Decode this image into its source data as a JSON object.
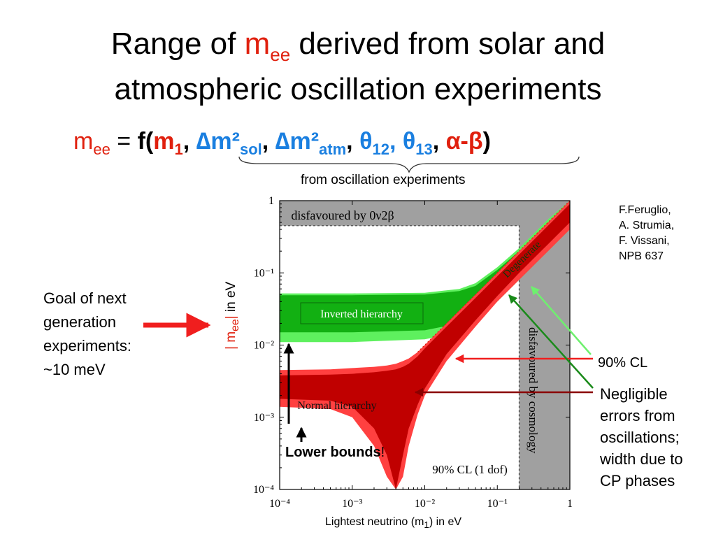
{
  "slide": {
    "title_pre": "Range of ",
    "title_m": "m",
    "title_sub": "ee",
    "title_post": "  derived from solar and",
    "title_line2": "atmospheric oscillation experiments",
    "formula": {
      "lhs_m": "m",
      "lhs_sub": "ee",
      "eq": " = ",
      "f_open": "f(",
      "m1": "m",
      "m1_sub": "1",
      "comma": ", ",
      "dm_sol": "∆m²",
      "dm_sol_sub": "sol",
      "dm_atm": "∆m²",
      "dm_atm_sub": "atm",
      "theta12": "θ",
      "theta12_sub": "12",
      "theta13": "θ",
      "theta13_sub": "13",
      "alpha_beta": "α-β",
      "close": ")"
    },
    "osc_label": "from oscillation experiments",
    "goal_lines": [
      "Goal of next",
      "generation",
      "experiments:",
      "~10 meV"
    ],
    "reference_lines": [
      "F.Feruglio,",
      "A. Strumia,",
      "F. Vissani,",
      "NPB 637"
    ],
    "cl_label": "90% CL",
    "negligible_lines": [
      "Negligible",
      "errors from",
      "oscillations;",
      "width due to",
      "CP phases"
    ],
    "lower_bounds": "Lower bounds",
    "lower_bounds_excl": "!",
    "xlabel_pre": "Lightest neutrino (m",
    "xlabel_sub": "1",
    "xlabel_post": ") in eV",
    "ylabel_bar1": "| m",
    "ylabel_sub": "ee",
    "ylabel_bar2": "|",
    "ylabel_post": " in eV"
  },
  "chart_data": {
    "type": "area",
    "xscale": "log",
    "yscale": "log",
    "xlim": [
      0.0001,
      1
    ],
    "ylim": [
      0.0001,
      1
    ],
    "x_ticks": [
      "10⁻⁴",
      "10⁻³",
      "10⁻²",
      "10⁻¹",
      "1"
    ],
    "y_ticks": [
      "10⁻⁴",
      "10⁻³",
      "10⁻²",
      "10⁻¹",
      "1"
    ],
    "tick_values": [
      0.0001,
      0.001,
      0.01,
      0.1,
      1
    ],
    "annotations": {
      "disfavoured_0v2b": "disfavoured by 0ν2β",
      "disfavoured_cosmology": "disfavoured by cosmology",
      "degenerate": "Degenerate",
      "inverted": "Inverted hierarchy",
      "normal": "Normal hierarchy",
      "cl_dof": "90% CL (1 dof)"
    },
    "excluded_regions": [
      {
        "name": "disfavoured by 0ν2β",
        "y_min": 0.45
      },
      {
        "name": "disfavoured by cosmology",
        "x_min": 0.2
      }
    ],
    "series": [
      {
        "name": "Inverted hierarchy",
        "color_outer": "#5ef05e",
        "color_inner": "#12b012",
        "x": [
          0.0001,
          0.001,
          0.01,
          0.03,
          0.05,
          0.1,
          0.2,
          0.5,
          1
        ],
        "outer_low": [
          0.011,
          0.011,
          0.012,
          0.015,
          0.02,
          0.04,
          0.08,
          0.2,
          0.4
        ],
        "outer_high": [
          0.052,
          0.052,
          0.053,
          0.06,
          0.072,
          0.12,
          0.22,
          0.55,
          1.0
        ],
        "inner_low": [
          0.015,
          0.015,
          0.016,
          0.02,
          0.027,
          0.052,
          0.1,
          0.25,
          0.5
        ],
        "inner_high": [
          0.049,
          0.049,
          0.05,
          0.056,
          0.066,
          0.11,
          0.2,
          0.5,
          1.0
        ]
      },
      {
        "name": "Normal hierarchy",
        "color_outer": "#ff4040",
        "color_inner": "#c00000",
        "x": [
          0.0001,
          0.0005,
          0.001,
          0.002,
          0.003,
          0.004,
          0.005,
          0.006,
          0.008,
          0.01,
          0.02,
          0.05,
          0.1,
          0.2,
          0.5,
          1
        ],
        "outer_low": [
          0.0014,
          0.0013,
          0.001,
          0.0004,
          0.00015,
          0.0001,
          0.00015,
          0.0004,
          0.0011,
          0.002,
          0.006,
          0.018,
          0.04,
          0.08,
          0.2,
          0.4
        ],
        "outer_high": [
          0.0045,
          0.0046,
          0.0048,
          0.005,
          0.0052,
          0.0055,
          0.006,
          0.0065,
          0.008,
          0.01,
          0.02,
          0.05,
          0.1,
          0.2,
          0.5,
          1.0
        ],
        "inner_low": [
          0.0018,
          0.0017,
          0.0014,
          0.0007,
          0.0003,
          0.0001,
          0.0003,
          0.0007,
          0.0015,
          0.0025,
          0.0075,
          0.022,
          0.048,
          0.1,
          0.25,
          0.5
        ],
        "inner_high": [
          0.0038,
          0.0039,
          0.004,
          0.0042,
          0.0044,
          0.0046,
          0.005,
          0.0055,
          0.007,
          0.009,
          0.018,
          0.045,
          0.09,
          0.18,
          0.45,
          0.9
        ]
      }
    ],
    "colors": {
      "excluded_gray": "#a0a0a0",
      "title_red": "#e0200e",
      "formula_blue": "#1a7fe0",
      "arrow_red": "#f01e1e",
      "inverted_label_bg": "#12b012"
    }
  }
}
